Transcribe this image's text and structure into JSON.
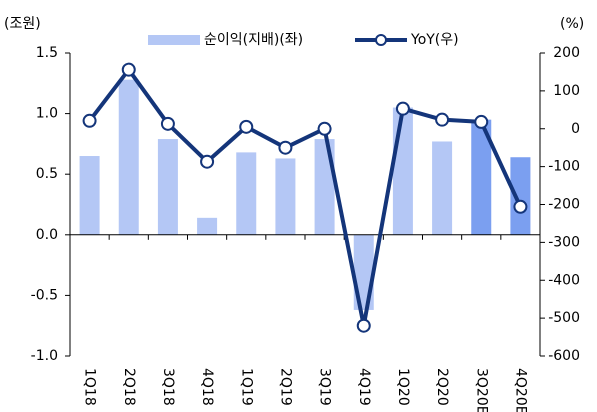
{
  "chart_data": {
    "type": "bar_line",
    "y_label": "(조원)",
    "y2_label": "(%)",
    "categories": [
      "1Q18",
      "2Q18",
      "3Q18",
      "4Q18",
      "1Q19",
      "2Q19",
      "3Q19",
      "4Q19",
      "1Q20",
      "2Q20",
      "3Q20E",
      "4Q20E"
    ],
    "series": [
      {
        "name": "순이익(지배)(좌)",
        "type": "bar",
        "axis": "y",
        "color": "#b4c7f5",
        "colors": [
          "#b4c7f5",
          "#b4c7f5",
          "#b4c7f5",
          "#b4c7f5",
          "#b4c7f5",
          "#b4c7f5",
          "#b4c7f5",
          "#b4c7f5",
          "#b4c7f5",
          "#b4c7f5",
          "#7b9ff0",
          "#7b9ff0"
        ],
        "values": [
          0.65,
          1.28,
          0.79,
          0.14,
          0.68,
          0.63,
          0.79,
          -0.62,
          1.05,
          0.77,
          0.95,
          0.64
        ]
      },
      {
        "name": "YoY(우)",
        "type": "line",
        "axis": "y2",
        "color": "#14357a",
        "values": [
          21,
          156,
          13,
          -87,
          5,
          -50,
          0,
          -520,
          53,
          24,
          18,
          -206
        ]
      }
    ],
    "ylim": [
      -1,
      1.5
    ],
    "yticks": [
      {
        "value": -1,
        "label": "-1.0"
      },
      -0.5,
      {
        "value": 0,
        "label": "0.0"
      },
      0.5,
      {
        "value": 1,
        "label": "1.0"
      },
      1.5
    ],
    "y2lim": [
      -600,
      200
    ],
    "y2ticks": [
      -600,
      -500,
      -400,
      -300,
      -200,
      -100,
      0,
      100,
      200
    ],
    "legend": "top"
  }
}
